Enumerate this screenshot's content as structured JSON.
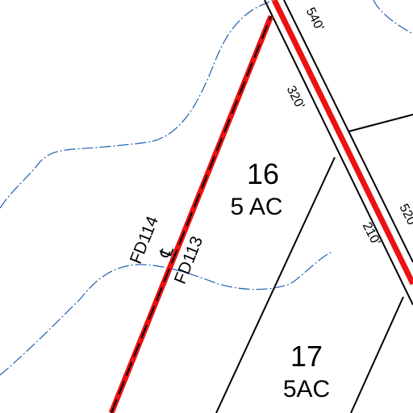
{
  "parcels": [
    {
      "number": "16",
      "acreage": "5 AC"
    },
    {
      "number": "17",
      "acreage": "5AC"
    }
  ],
  "dimensions": [
    "540'",
    "320'",
    "520",
    "210'"
  ],
  "district_labels": {
    "left": "FD114",
    "right": "FD113",
    "centerline_symbol": "℄"
  },
  "colors": {
    "district_boundary": "#ee1111",
    "contour": "#1f5fb0",
    "parcel_line": "#000000",
    "background": "#ffffff"
  }
}
